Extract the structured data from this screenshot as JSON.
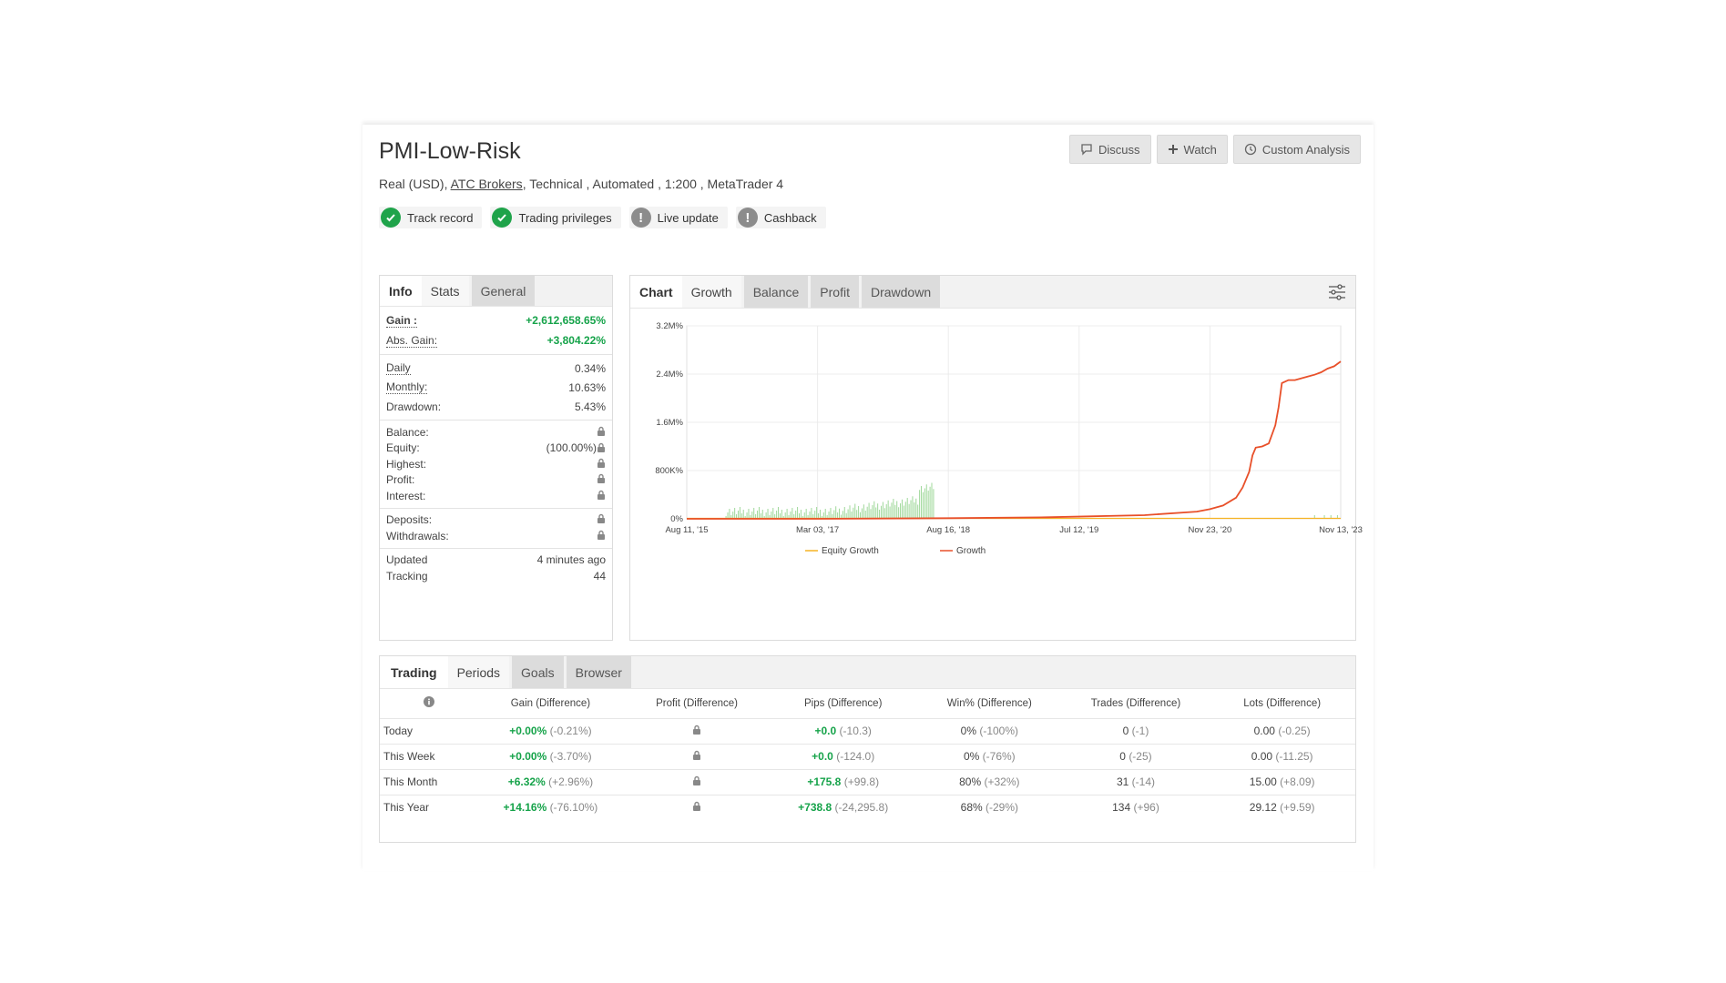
{
  "header": {
    "title": "PMI-Low-Risk",
    "account_type": "Real (USD),",
    "broker": "ATC Brokers",
    "details": ", Technical , Automated , 1:200 , MetaTrader 4"
  },
  "buttons": {
    "discuss": "Discuss",
    "watch": "Watch",
    "custom_analysis": "Custom Analysis"
  },
  "badges": [
    {
      "label": "Track record",
      "status": "check"
    },
    {
      "label": "Trading privileges",
      "status": "check"
    },
    {
      "label": "Live update",
      "status": "exclamation"
    },
    {
      "label": "Cashback",
      "status": "exclamation"
    }
  ],
  "info": {
    "tabs": [
      "Info",
      "Stats",
      "General"
    ],
    "gain_label": "Gain :",
    "gain": "+2,612,658.65%",
    "abs_gain_label": "Abs. Gain:",
    "abs_gain": "+3,804.22%",
    "daily_label": "Daily",
    "daily": "0.34%",
    "monthly_label": "Monthly:",
    "monthly": "10.63%",
    "drawdown_label": "Drawdown:",
    "drawdown": "5.43%",
    "balance_label": "Balance:",
    "equity_label": "Equity:",
    "equity": "(100.00%)",
    "highest_label": "Highest:",
    "profit_label": "Profit:",
    "interest_label": "Interest:",
    "deposits_label": "Deposits:",
    "withdrawals_label": "Withdrawals:",
    "updated_label": "Updated",
    "updated": "4 minutes ago",
    "tracking_label": "Tracking",
    "tracking": "44"
  },
  "chart_tabs": [
    "Chart",
    "Growth",
    "Balance",
    "Profit",
    "Drawdown"
  ],
  "chart_data": {
    "type": "line",
    "y_ticks": [
      "3.2M%",
      "2.4M%",
      "1.6M%",
      "800K%",
      "0%"
    ],
    "x_ticks": [
      "Aug 11, '15",
      "Mar 03, '17",
      "Aug 16, '18",
      "Jul 12, '19",
      "Nov 23, '20",
      "Nov 13, '23"
    ],
    "ylim": [
      0,
      3200000
    ],
    "legend": [
      "Equity Growth",
      "Growth"
    ],
    "colors": {
      "equity": "#f5b324",
      "growth": "#e8502a",
      "bars": "#9fd89a"
    },
    "growth_x_fraction": [
      0,
      0.2,
      0.4,
      0.55,
      0.7,
      0.78,
      0.8,
      0.82,
      0.84,
      0.85,
      0.86,
      0.865,
      0.87,
      0.88,
      0.89,
      0.9,
      0.905,
      0.91,
      0.92,
      0.93,
      0.94,
      0.95,
      0.96,
      0.97,
      0.98,
      0.99,
      1.0
    ],
    "series": [
      {
        "name": "Growth",
        "values": [
          0,
          0,
          10000,
          25000,
          60000,
          120000,
          160000,
          220000,
          350000,
          520000,
          780000,
          1050000,
          1180000,
          1200000,
          1250000,
          1550000,
          1850000,
          2250000,
          2300000,
          2300000,
          2330000,
          2360000,
          2390000,
          2430000,
          2490000,
          2530000,
          2610000
        ]
      }
    ]
  },
  "trading": {
    "tabs": [
      "Trading",
      "Periods",
      "Goals",
      "Browser"
    ],
    "columns": [
      "Gain (Difference)",
      "Profit (Difference)",
      "Pips (Difference)",
      "Win% (Difference)",
      "Trades (Difference)",
      "Lots (Difference)"
    ],
    "rows": [
      {
        "period": "Today",
        "gain": "+0.00%",
        "gain_diff": "(-0.21%)",
        "pips": "+0.0",
        "pips_diff": "(-10.3)",
        "win": "0%",
        "win_diff": "(-100%)",
        "trades": "0",
        "trades_diff": "(-1)",
        "lots": "0.00",
        "lots_diff": "(-0.25)"
      },
      {
        "period": "This Week",
        "gain": "+0.00%",
        "gain_diff": "(-3.70%)",
        "pips": "+0.0",
        "pips_diff": "(-124.0)",
        "win": "0%",
        "win_diff": "(-76%)",
        "trades": "0",
        "trades_diff": "(-25)",
        "lots": "0.00",
        "lots_diff": "(-11.25)"
      },
      {
        "period": "This Month",
        "gain": "+6.32%",
        "gain_diff": "(+2.96%)",
        "pips": "+175.8",
        "pips_diff": "(+99.8)",
        "win": "80%",
        "win_diff": "(+32%)",
        "trades": "31",
        "trades_diff": "(-14)",
        "lots": "15.00",
        "lots_diff": "(+8.09)"
      },
      {
        "period": "This Year",
        "gain": "+14.16%",
        "gain_diff": "(-76.10%)",
        "pips": "+738.8",
        "pips_diff": "(-24,295.8)",
        "win": "68%",
        "win_diff": "(-29%)",
        "trades": "134",
        "trades_diff": "(+96)",
        "lots": "29.12",
        "lots_diff": "(+9.59)"
      }
    ]
  }
}
